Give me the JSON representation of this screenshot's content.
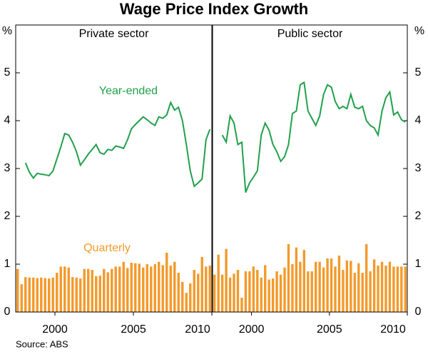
{
  "title": "Wage Price Index Growth",
  "source": "Source: ABS",
  "chart_data": [
    {
      "type": "combo",
      "title": "Private sector",
      "y_label": "%",
      "y_axis_side": "left",
      "x": [
        1998.125,
        1998.375,
        1998.625,
        1998.875,
        1999.125,
        1999.375,
        1999.625,
        1999.875,
        2000.125,
        2000.375,
        2000.625,
        2000.875,
        2001.125,
        2001.375,
        2001.625,
        2001.875,
        2002.125,
        2002.375,
        2002.625,
        2002.875,
        2003.125,
        2003.375,
        2003.625,
        2003.875,
        2004.125,
        2004.375,
        2004.625,
        2004.875,
        2005.125,
        2005.375,
        2005.625,
        2005.875,
        2006.125,
        2006.375,
        2006.625,
        2006.875,
        2007.125,
        2007.375,
        2007.625,
        2007.875,
        2008.125,
        2008.375,
        2008.625,
        2008.875,
        2009.125,
        2009.375,
        2009.625,
        2009.875,
        2010.125,
        2010.375
      ],
      "xlim": [
        1998,
        2010.5
      ],
      "xticks": [
        {
          "value": 2000.5,
          "label": "2000"
        },
        {
          "value": 2005.5,
          "label": "2005"
        },
        {
          "value": 2010.5,
          "label": "2010"
        }
      ],
      "ylim": [
        0,
        6
      ],
      "yticks": [
        0,
        1,
        2,
        3,
        4,
        5
      ],
      "series": [
        {
          "name": "Year-ended",
          "type": "line",
          "color": "#21a04a",
          "values": [
            null,
            null,
            3.12,
            2.92,
            2.8,
            2.9,
            2.88,
            2.87,
            2.85,
            2.95,
            3.2,
            3.45,
            3.73,
            3.7,
            3.55,
            3.35,
            3.07,
            3.18,
            3.3,
            3.4,
            3.5,
            3.33,
            3.3,
            3.4,
            3.38,
            3.47,
            3.45,
            3.42,
            3.6,
            3.83,
            3.92,
            4.0,
            4.08,
            4.02,
            3.95,
            3.9,
            4.08,
            4.05,
            4.12,
            4.38,
            4.22,
            4.28,
            4.0,
            3.5,
            2.95,
            2.63,
            2.7,
            2.78,
            3.6,
            3.82
          ]
        },
        {
          "name": "Quarterly",
          "type": "bar",
          "color": "#f39a2b",
          "values": [
            0.9,
            0.58,
            0.73,
            0.72,
            0.72,
            0.71,
            0.72,
            0.71,
            0.7,
            0.72,
            0.82,
            0.95,
            0.95,
            0.93,
            0.73,
            0.72,
            0.7,
            0.9,
            0.9,
            0.88,
            0.75,
            0.76,
            0.9,
            0.83,
            0.9,
            0.95,
            0.95,
            1.05,
            0.92,
            1.03,
            1.02,
            1.01,
            0.93,
            1.0,
            0.95,
            1.0,
            1.05,
            0.98,
            1.24,
            0.97,
            1.05,
            0.82,
            0.63,
            0.4,
            0.6,
            0.88,
            0.8,
            1.15,
            0.95,
            0.97
          ]
        }
      ]
    },
    {
      "type": "combo",
      "title": "Public sector",
      "y_label": "%",
      "y_axis_side": "right",
      "x": [
        1998.125,
        1998.375,
        1998.625,
        1998.875,
        1999.125,
        1999.375,
        1999.625,
        1999.875,
        2000.125,
        2000.375,
        2000.625,
        2000.875,
        2001.125,
        2001.375,
        2001.625,
        2001.875,
        2002.125,
        2002.375,
        2002.625,
        2002.875,
        2003.125,
        2003.375,
        2003.625,
        2003.875,
        2004.125,
        2004.375,
        2004.625,
        2004.875,
        2005.125,
        2005.375,
        2005.625,
        2005.875,
        2006.125,
        2006.375,
        2006.625,
        2006.875,
        2007.125,
        2007.375,
        2007.625,
        2007.875,
        2008.125,
        2008.375,
        2008.625,
        2008.875,
        2009.125,
        2009.375,
        2009.625,
        2009.875,
        2010.125,
        2010.375
      ],
      "xlim": [
        1998,
        2010.5
      ],
      "xticks": [
        {
          "value": 2000.5,
          "label": "2000"
        },
        {
          "value": 2005.5,
          "label": "2005"
        },
        {
          "value": 2010.5,
          "label": "2010"
        }
      ],
      "ylim": [
        0,
        6
      ],
      "yticks": [
        0,
        1,
        2,
        3,
        4,
        5
      ],
      "series": [
        {
          "type": "line",
          "color": "#21a04a",
          "values": [
            null,
            null,
            3.7,
            3.55,
            4.1,
            3.95,
            3.5,
            3.55,
            2.5,
            2.7,
            2.82,
            2.95,
            3.7,
            3.95,
            3.8,
            3.5,
            3.35,
            3.15,
            3.25,
            3.5,
            4.15,
            4.2,
            4.75,
            4.8,
            4.2,
            4.05,
            3.9,
            4.1,
            4.55,
            4.75,
            4.7,
            4.4,
            4.25,
            4.3,
            4.25,
            4.55,
            4.28,
            4.25,
            4.3,
            4.0,
            3.9,
            3.85,
            3.7,
            4.2,
            4.48,
            4.6,
            4.12,
            4.18,
            4.02,
            3.97
          ]
        },
        {
          "type": "bar",
          "color": "#f39a2b",
          "values": [
            0.78,
            1.2,
            0.78,
            1.32,
            0.72,
            0.8,
            0.88,
            0.3,
            0.85,
            0.85,
            0.95,
            0.88,
            0.72,
            0.98,
            0.68,
            0.7,
            0.85,
            0.78,
            0.93,
            1.42,
            1.0,
            1.35,
            1.05,
            1.3,
            0.85,
            0.85,
            1.05,
            1.05,
            0.93,
            1.12,
            1.12,
            0.95,
            1.18,
            0.88,
            1.08,
            1.07,
            0.82,
            1.02,
            0.82,
            1.42,
            0.85,
            1.1,
            0.97,
            1.05,
            0.97,
            1.05,
            0.95,
            0.95,
            0.95,
            0.95
          ]
        }
      ]
    }
  ]
}
